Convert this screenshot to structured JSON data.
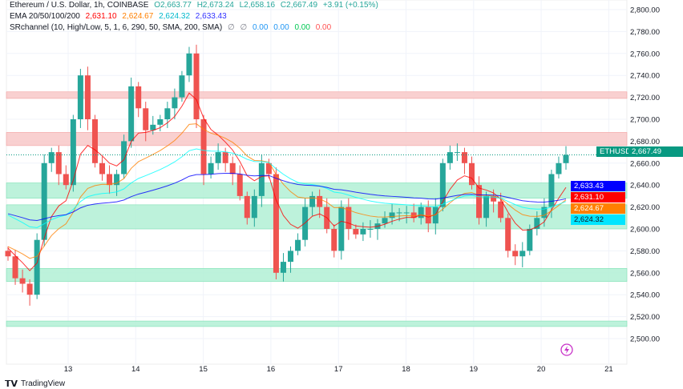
{
  "header": {
    "line1": "Ethereum / U.S. Dollar, 1h, COINBASE",
    "open": "O2,663.77",
    "high": "H2,673.24",
    "low": "L2,658.16",
    "close": "C2,667.49",
    "change": "+3.91 (+0.15%)",
    "ema_label": "EMA 20/50/100/200",
    "ema_values": [
      "2,631.10",
      "2,624.67",
      "2,624.32",
      "2,633.43"
    ],
    "sr_label": "SRchannel (10, High/Low, 5, 1, 6, 290, 50, SMA, 200, SMA)",
    "sr_symbols": [
      "∅",
      "∅"
    ],
    "sr_values": [
      "0.00",
      "0.00",
      "0.00",
      "0.00"
    ]
  },
  "colors": {
    "up": "#26a69a",
    "down": "#ef5350",
    "ema20": "#ff0000",
    "ema50": "#ff8000",
    "ema100": "#00ffff",
    "ema200": "#0000ff",
    "green_zone": "#b2f0d5",
    "red_zone": "#f8c8c8"
  },
  "symbol_tag": {
    "label": "ETHUSD",
    "value": "2,667.49"
  },
  "price_tags": [
    {
      "value": "2,633.43",
      "color": "#0000ff",
      "price": 2633.43
    },
    {
      "value": "2,631.10",
      "color": "#ff0000",
      "price": 2631.1
    },
    {
      "value": "2,624.67",
      "color": "#ff8000",
      "price": 2624.67
    },
    {
      "value": "2,624.32",
      "color": "#00e5ff",
      "price": 2624.32
    }
  ],
  "footer": {
    "brand": "TradingView"
  },
  "chart_data": {
    "type": "candlestick",
    "interval": "1h",
    "ylim": [
      2500,
      2800
    ],
    "y_ticks": [
      "2,800.00",
      "2,780.00",
      "2,760.00",
      "2,740.00",
      "2,720.00",
      "2,700.00",
      "2,680.00",
      "2,660.00",
      "2,640.00",
      "2,620.00",
      "2,600.00",
      "2,580.00",
      "2,560.00",
      "2,540.00",
      "2,520.00",
      "2,500.00"
    ],
    "x_ticks": [
      "13",
      "14",
      "15",
      "16",
      "17",
      "18",
      "19",
      "20",
      "21"
    ],
    "closes": [
      2575,
      2555,
      2550,
      2540,
      2590,
      2660,
      2670,
      2650,
      2640,
      2700,
      2740,
      2700,
      2660,
      2650,
      2640,
      2650,
      2680,
      2730,
      2710,
      2690,
      2695,
      2700,
      2710,
      2720,
      2740,
      2760,
      2700,
      2650,
      2660,
      2670,
      2660,
      2650,
      2630,
      2610,
      2630,
      2660,
      2650,
      2560,
      2570,
      2580,
      2590,
      2620,
      2630,
      2620,
      2600,
      2580,
      2620,
      2600,
      2595,
      2600,
      2600,
      2605,
      2610,
      2615,
      2615,
      2615,
      2610,
      2620,
      2605,
      2620,
      2660,
      2670,
      2670,
      2660,
      2640,
      2610,
      2630,
      2625,
      2610,
      2580,
      2575,
      2580,
      2600,
      2610,
      2620,
      2650,
      2660,
      2667.49
    ],
    "sr_zones": [
      {
        "from": 2719,
        "to": 2725,
        "type": "resistance"
      },
      {
        "from": 2676,
        "to": 2688,
        "type": "resistance"
      },
      {
        "from": 2628,
        "to": 2642,
        "type": "support"
      },
      {
        "from": 2600,
        "to": 2622,
        "type": "support"
      },
      {
        "from": 2552,
        "to": 2564,
        "type": "support"
      },
      {
        "from": 2511,
        "to": 2516,
        "type": "support"
      }
    ]
  }
}
